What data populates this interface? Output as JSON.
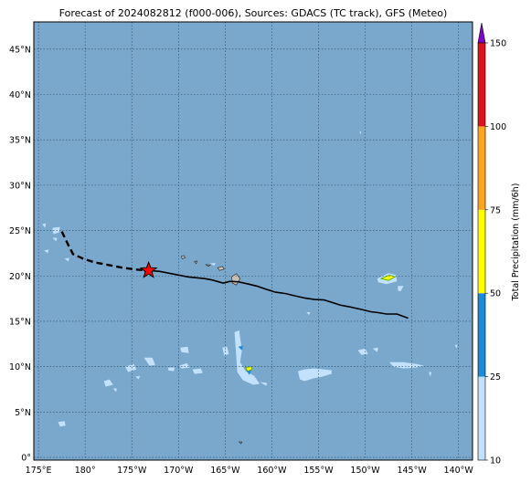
{
  "title": "Forecast of 2024082812 (f000-006), Sources: GDACS (TC track), GFS (Meteo)",
  "map": {
    "lon_range": [
      174.5,
      221.5
    ],
    "lat_range": [
      -0.3,
      48
    ],
    "ocean_color": "#7aa7cc",
    "grid": "dotted",
    "x_ticks": [
      {
        "lon": 175,
        "label": "175°E"
      },
      {
        "lon": 180,
        "label": "180°"
      },
      {
        "lon": 185,
        "label": "175°W"
      },
      {
        "lon": 190,
        "label": "170°W"
      },
      {
        "lon": 195,
        "label": "165°W"
      },
      {
        "lon": 200,
        "label": "160°W"
      },
      {
        "lon": 205,
        "label": "155°W"
      },
      {
        "lon": 210,
        "label": "150°W"
      },
      {
        "lon": 215,
        "label": "145°W"
      },
      {
        "lon": 220,
        "label": "140°W"
      }
    ],
    "y_ticks": [
      {
        "lat": 0,
        "label": "0°"
      },
      {
        "lat": 5,
        "label": "5°N"
      },
      {
        "lat": 10,
        "label": "10°N"
      },
      {
        "lat": 15,
        "label": "15°N"
      },
      {
        "lat": 20,
        "label": "20°N"
      },
      {
        "lat": 25,
        "label": "25°N"
      },
      {
        "lat": 30,
        "label": "30°N"
      },
      {
        "lat": 35,
        "label": "35°N"
      },
      {
        "lat": 40,
        "label": "40°N"
      },
      {
        "lat": 45,
        "label": "45°N"
      }
    ]
  },
  "track": {
    "past": [
      [
        177.5,
        24.9
      ],
      [
        178.2,
        23.4
      ],
      [
        178.7,
        22.4
      ],
      [
        179.8,
        21.9
      ],
      [
        181,
        21.5
      ],
      [
        182.5,
        21.2
      ],
      [
        184,
        20.9
      ],
      [
        185.5,
        20.7
      ],
      [
        186.8,
        20.6
      ]
    ],
    "forecast": [
      [
        186.8,
        20.6
      ],
      [
        188,
        20.5
      ],
      [
        189.5,
        20.2
      ],
      [
        191,
        19.9
      ],
      [
        192.8,
        19.7
      ],
      [
        193.6,
        19.55
      ],
      [
        194.8,
        19.2
      ],
      [
        195.5,
        19.4
      ],
      [
        196.4,
        19.35
      ],
      [
        197.5,
        19.1
      ],
      [
        198.5,
        18.85
      ],
      [
        199.5,
        18.5
      ],
      [
        200.4,
        18.2
      ],
      [
        201.5,
        18.05
      ],
      [
        202.5,
        17.8
      ],
      [
        203.6,
        17.55
      ],
      [
        204.6,
        17.4
      ],
      [
        205.6,
        17.35
      ],
      [
        206.4,
        17.1
      ],
      [
        207.3,
        16.8
      ],
      [
        208.5,
        16.55
      ],
      [
        209.6,
        16.3
      ],
      [
        210.6,
        16.05
      ],
      [
        211.4,
        15.95
      ],
      [
        212.3,
        15.8
      ],
      [
        213.4,
        15.8
      ],
      [
        214.6,
        15.35
      ]
    ],
    "current_position": [
      186.8,
      20.6
    ]
  },
  "islands": [
    [
      [
        195.7,
        19.9
      ],
      [
        196.2,
        20.25
      ],
      [
        196.6,
        19.7
      ],
      [
        196.2,
        19.0
      ],
      [
        195.8,
        19.2
      ]
    ],
    [
      [
        194.2,
        20.9
      ],
      [
        194.7,
        21.05
      ],
      [
        194.9,
        20.75
      ],
      [
        194.4,
        20.6
      ]
    ],
    [
      [
        192.9,
        21.25
      ],
      [
        193.4,
        21.2
      ],
      [
        193.2,
        21.05
      ]
    ],
    [
      [
        191.7,
        21.6
      ],
      [
        192.0,
        21.65
      ],
      [
        191.9,
        21.35
      ]
    ],
    [
      [
        190.3,
        22.15
      ],
      [
        190.6,
        22.25
      ],
      [
        190.7,
        22.0
      ],
      [
        190.4,
        21.9
      ]
    ],
    [
      [
        196.5,
        1.7
      ],
      [
        196.8,
        1.7
      ],
      [
        196.7,
        1.5
      ]
    ]
  ],
  "precip_patches": [
    {
      "level": 1,
      "points": [
        [
          211.3,
          19.7
        ],
        [
          212.5,
          20.3
        ],
        [
          213.3,
          20.1
        ],
        [
          213.4,
          19.4
        ],
        [
          212.3,
          19.1
        ],
        [
          211.4,
          19.3
        ]
      ]
    },
    {
      "level": 3,
      "points": [
        [
          211.7,
          19.7
        ],
        [
          212.6,
          20.1
        ],
        [
          213.2,
          19.9
        ],
        [
          212.5,
          19.5
        ]
      ]
    },
    {
      "level": 1,
      "points": [
        [
          196.0,
          13.8
        ],
        [
          196.5,
          14.0
        ],
        [
          196.8,
          11.8
        ],
        [
          196.6,
          10.5
        ],
        [
          197.2,
          9.5
        ],
        [
          198.1,
          9.0
        ],
        [
          198.7,
          8.1
        ],
        [
          198.0,
          8.0
        ],
        [
          196.9,
          8.5
        ],
        [
          196.3,
          9.4
        ],
        [
          196.2,
          11.0
        ]
      ]
    },
    {
      "level": 2,
      "points": [
        [
          196.4,
          12.2
        ],
        [
          196.9,
          12.3
        ],
        [
          196.8,
          11.8
        ]
      ]
    },
    {
      "level": 3,
      "points": [
        [
          197.2,
          9.9
        ],
        [
          197.8,
          10.0
        ],
        [
          197.9,
          9.7
        ],
        [
          197.4,
          9.5
        ]
      ]
    },
    {
      "level": 2,
      "points": [
        [
          197.3,
          9.5
        ],
        [
          197.8,
          9.6
        ],
        [
          197.6,
          9.1
        ]
      ]
    },
    {
      "level": 1,
      "points": [
        [
          202.8,
          9.5
        ],
        [
          203.5,
          9.7
        ],
        [
          204.5,
          9.8
        ],
        [
          205.6,
          9.7
        ],
        [
          206.4,
          9.6
        ],
        [
          206.4,
          9.2
        ],
        [
          205.4,
          8.9
        ],
        [
          204.4,
          8.7
        ],
        [
          203.5,
          8.4
        ],
        [
          203.0,
          8.6
        ]
      ]
    },
    {
      "level": 1,
      "points": [
        [
          194.7,
          12.1
        ],
        [
          195.2,
          12.2
        ],
        [
          195.4,
          11.4
        ],
        [
          194.9,
          11.2
        ]
      ]
    },
    {
      "level": 1,
      "points": [
        [
          186.3,
          11.0
        ],
        [
          187.2,
          11.0
        ],
        [
          187.5,
          10.2
        ],
        [
          186.9,
          10.1
        ]
      ]
    },
    {
      "level": 1,
      "points": [
        [
          184.3,
          10.0
        ],
        [
          185.2,
          10.3
        ],
        [
          185.5,
          9.7
        ],
        [
          184.6,
          9.4
        ]
      ]
    },
    {
      "level": 1,
      "points": [
        [
          190.1,
          10.1
        ],
        [
          190.9,
          10.4
        ],
        [
          191.2,
          9.9
        ],
        [
          190.3,
          9.8
        ]
      ]
    },
    {
      "level": 1,
      "points": [
        [
          188.9,
          9.9
        ],
        [
          189.6,
          9.9
        ],
        [
          189.5,
          9.5
        ],
        [
          188.9,
          9.6
        ]
      ]
    },
    {
      "level": 1,
      "points": [
        [
          191.5,
          9.7
        ],
        [
          192.4,
          9.8
        ],
        [
          192.6,
          9.3
        ],
        [
          191.7,
          9.2
        ]
      ]
    },
    {
      "level": 1,
      "points": [
        [
          190.2,
          12.1
        ],
        [
          191.0,
          12.2
        ],
        [
          191.1,
          11.5
        ],
        [
          190.3,
          11.6
        ]
      ]
    },
    {
      "level": 1,
      "points": [
        [
          182.0,
          8.4
        ],
        [
          182.6,
          8.6
        ],
        [
          183.0,
          8.0
        ],
        [
          182.2,
          7.8
        ]
      ]
    },
    {
      "level": 1,
      "points": [
        [
          183.0,
          7.6
        ],
        [
          183.4,
          7.6
        ],
        [
          183.3,
          7.2
        ]
      ]
    },
    {
      "level": 1,
      "points": [
        [
          185.4,
          8.9
        ],
        [
          185.9,
          9.0
        ],
        [
          185.7,
          8.6
        ]
      ]
    },
    {
      "level": 1,
      "points": [
        [
          176.5,
          25.3
        ],
        [
          177.3,
          25.4
        ],
        [
          177.2,
          24.8
        ],
        [
          176.6,
          24.6
        ]
      ]
    },
    {
      "level": 1,
      "points": [
        [
          176.5,
          24.2
        ],
        [
          177.0,
          24.2
        ],
        [
          176.9,
          23.8
        ]
      ]
    },
    {
      "level": 1,
      "points": [
        [
          175.4,
          25.7
        ],
        [
          175.8,
          25.8
        ],
        [
          175.7,
          25.3
        ]
      ]
    },
    {
      "level": 1,
      "points": [
        [
          175.6,
          22.8
        ],
        [
          176.1,
          22.9
        ],
        [
          176.0,
          22.5
        ]
      ]
    },
    {
      "level": 1,
      "points": [
        [
          177.8,
          21.9
        ],
        [
          178.3,
          22.0
        ],
        [
          178.2,
          21.6
        ]
      ]
    },
    {
      "level": 1,
      "points": [
        [
          177.1,
          3.9
        ],
        [
          177.8,
          4.0
        ],
        [
          177.9,
          3.5
        ],
        [
          177.3,
          3.4
        ]
      ]
    },
    {
      "level": 1,
      "points": [
        [
          209.2,
          11.8
        ],
        [
          210.0,
          12.0
        ],
        [
          210.3,
          11.4
        ],
        [
          209.6,
          11.3
        ]
      ]
    },
    {
      "level": 1,
      "points": [
        [
          212.6,
          10.5
        ],
        [
          214.1,
          10.5
        ],
        [
          215.5,
          10.3
        ],
        [
          216.3,
          10.1
        ],
        [
          215.4,
          9.9
        ],
        [
          214.1,
          9.8
        ],
        [
          213.0,
          10.0
        ]
      ]
    },
    {
      "level": 1,
      "points": [
        [
          210.8,
          12.0
        ],
        [
          211.4,
          12.1
        ],
        [
          211.3,
          11.6
        ]
      ]
    },
    {
      "level": 1,
      "points": [
        [
          193.4,
          21.4
        ],
        [
          194.0,
          21.4
        ],
        [
          193.8,
          21.1
        ]
      ]
    },
    {
      "level": 1,
      "points": [
        [
          216.8,
          9.4
        ],
        [
          217.1,
          9.4
        ],
        [
          217.0,
          8.9
        ]
      ]
    },
    {
      "level": 1,
      "points": [
        [
          219.6,
          12.4
        ],
        [
          219.9,
          12.4
        ],
        [
          219.8,
          12.0
        ]
      ]
    },
    {
      "level": 1,
      "points": [
        [
          203.7,
          16.0
        ],
        [
          204.1,
          16.0
        ],
        [
          204.0,
          15.7
        ]
      ]
    },
    {
      "level": 1,
      "points": [
        [
          198.7,
          8.3
        ],
        [
          199.5,
          8.2
        ],
        [
          199.4,
          7.9
        ]
      ]
    },
    {
      "level": 1,
      "points": [
        [
          209.4,
          35.9
        ],
        [
          209.6,
          35.9
        ],
        [
          209.5,
          35.6
        ]
      ]
    },
    {
      "level": 1,
      "points": [
        [
          213.5,
          18.9
        ],
        [
          214.1,
          18.9
        ],
        [
          213.8,
          18.3
        ],
        [
          213.5,
          18.4
        ]
      ]
    }
  ],
  "colorbar": {
    "label": "Total Precipitation (mm/6h)",
    "ticks": [
      "10",
      "25",
      "50",
      "75",
      "100",
      "150"
    ],
    "levels": [
      10,
      25,
      50,
      75,
      100,
      150
    ],
    "colors": [
      "#c2e1fc",
      "#1b8ad8",
      "#ffff00",
      "#ffa520",
      "#d9121b"
    ],
    "extend_color": "#7f07c8"
  }
}
